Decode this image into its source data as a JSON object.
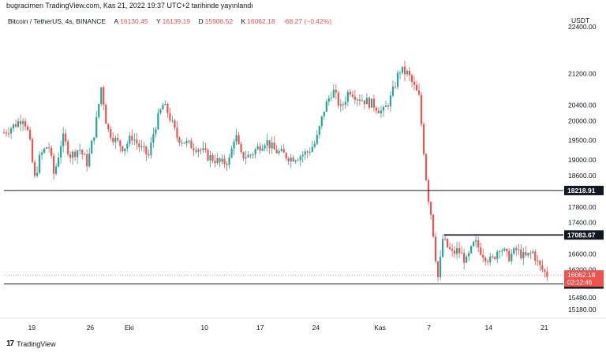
{
  "header": {
    "published": "bugracimen TradingView.com, Kas 21, 2022 19:37 UTC+2 tarihinde yayınlandı"
  },
  "info": {
    "symbol": "Bitcoin / TetherUS, 4s, BINANCE",
    "open_label": "A",
    "open": "16130.45",
    "high_label": "Y",
    "high": "16139.19",
    "low_label": "D",
    "low": "15906.52",
    "close_label": "K",
    "close": "16062.18",
    "change": "-68.27 (−0.42%)"
  },
  "currency": "USDT",
  "footer": {
    "brand": "TradingView"
  },
  "colors": {
    "up": "#26a69a",
    "down": "#ef5350",
    "line": "#131722",
    "price": "#ef5350"
  },
  "chart_data": {
    "type": "candlestick",
    "ylim": [
      15000,
      22400
    ],
    "y_ticks": [
      "22400.00",
      "21200.00",
      "20400.00",
      "20000.00",
      "19500.00",
      "19000.00",
      "18600.00",
      "17800.00",
      "17400.00",
      "16600.00",
      "16200.00",
      "15480.00",
      "15180.00"
    ],
    "x_ticks": [
      {
        "label": "19",
        "t": 0.05
      },
      {
        "label": "26",
        "t": 0.155
      },
      {
        "label": "Eki",
        "t": 0.225
      },
      {
        "label": "10",
        "t": 0.36
      },
      {
        "label": "17",
        "t": 0.46
      },
      {
        "label": "24",
        "t": 0.56
      },
      {
        "label": "Kas",
        "t": 0.675
      },
      {
        "label": "7",
        "t": 0.763
      },
      {
        "label": "14",
        "t": 0.87
      },
      {
        "label": "21",
        "t": 0.97
      }
    ],
    "horizontal_lines": [
      {
        "value": 18218.91,
        "label": "18218.91",
        "t_start": 0.0
      },
      {
        "value": 17083.67,
        "label": "17083.67",
        "t_start": 0.79
      },
      {
        "value": 15832.67,
        "label": "15832.67",
        "t_start": 0.0
      }
    ],
    "last_price": {
      "value": 16062.18,
      "label": "16062.18",
      "countdown": "02:22:46"
    },
    "path": [
      [
        0.0,
        19700
      ],
      [
        0.02,
        19900
      ],
      [
        0.035,
        20100
      ],
      [
        0.045,
        19600
      ],
      [
        0.055,
        18500
      ],
      [
        0.065,
        19100
      ],
      [
        0.08,
        19400
      ],
      [
        0.09,
        18600
      ],
      [
        0.105,
        19600
      ],
      [
        0.12,
        19100
      ],
      [
        0.135,
        19300
      ],
      [
        0.15,
        18900
      ],
      [
        0.165,
        19900
      ],
      [
        0.175,
        20900
      ],
      [
        0.185,
        19800
      ],
      [
        0.2,
        19500
      ],
      [
        0.215,
        19300
      ],
      [
        0.23,
        19600
      ],
      [
        0.245,
        19300
      ],
      [
        0.26,
        19100
      ],
      [
        0.27,
        19800
      ],
      [
        0.285,
        20400
      ],
      [
        0.295,
        20200
      ],
      [
        0.31,
        19600
      ],
      [
        0.33,
        19400
      ],
      [
        0.35,
        19300
      ],
      [
        0.365,
        19100
      ],
      [
        0.38,
        19000
      ],
      [
        0.39,
        18900
      ],
      [
        0.405,
        19000
      ],
      [
        0.415,
        19700
      ],
      [
        0.425,
        19100
      ],
      [
        0.44,
        19100
      ],
      [
        0.455,
        19300
      ],
      [
        0.47,
        19500
      ],
      [
        0.485,
        19250
      ],
      [
        0.5,
        19150
      ],
      [
        0.515,
        19050
      ],
      [
        0.53,
        19100
      ],
      [
        0.545,
        19200
      ],
      [
        0.56,
        19450
      ],
      [
        0.575,
        20300
      ],
      [
        0.59,
        20800
      ],
      [
        0.605,
        20300
      ],
      [
        0.62,
        20800
      ],
      [
        0.635,
        20600
      ],
      [
        0.65,
        20500
      ],
      [
        0.665,
        20400
      ],
      [
        0.68,
        20200
      ],
      [
        0.695,
        20600
      ],
      [
        0.71,
        21300
      ],
      [
        0.725,
        21200
      ],
      [
        0.735,
        20900
      ],
      [
        0.745,
        20600
      ],
      [
        0.752,
        19500
      ],
      [
        0.76,
        18200
      ],
      [
        0.768,
        17500
      ],
      [
        0.775,
        16500
      ],
      [
        0.78,
        15900
      ],
      [
        0.787,
        17000
      ],
      [
        0.795,
        16800
      ],
      [
        0.805,
        16600
      ],
      [
        0.815,
        16700
      ],
      [
        0.83,
        16400
      ],
      [
        0.845,
        16900
      ],
      [
        0.86,
        16600
      ],
      [
        0.875,
        16400
      ],
      [
        0.89,
        16800
      ],
      [
        0.905,
        16500
      ],
      [
        0.92,
        16700
      ],
      [
        0.935,
        16500
      ],
      [
        0.95,
        16650
      ],
      [
        0.96,
        16300
      ],
      [
        0.975,
        16062
      ]
    ]
  }
}
